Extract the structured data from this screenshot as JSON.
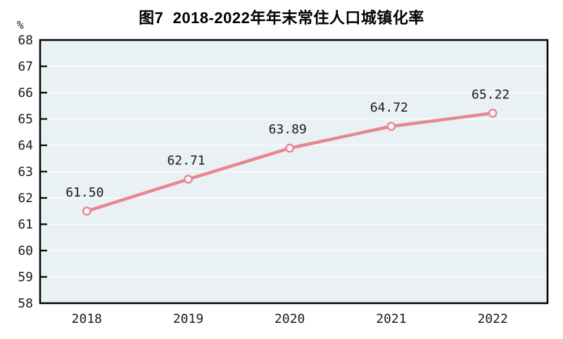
{
  "title": {
    "text": "图7  2018-2022年年末常住人口城镇化率"
  },
  "y_axis": {
    "unit_label": "%",
    "tick_labels": [
      "68",
      "67",
      "66",
      "65",
      "64",
      "63",
      "62",
      "61",
      "60",
      "59",
      "58"
    ]
  },
  "x_axis": {
    "tick_labels": [
      "2018",
      "2019",
      "2020",
      "2021",
      "2022"
    ]
  },
  "chart_data": {
    "type": "line",
    "title": "图7  2018-2022年年末常住人口城镇化率",
    "categories": [
      "2018",
      "2019",
      "2020",
      "2021",
      "2022"
    ],
    "values": [
      61.5,
      62.71,
      63.89,
      64.72,
      65.22
    ],
    "point_labels": [
      "61.50",
      "62.71",
      "63.89",
      "64.72",
      "65.22"
    ],
    "xlabel": "",
    "ylabel": "%",
    "ylim": [
      58,
      68
    ],
    "ytick_step": 1,
    "grid": true,
    "legend_position": "none",
    "colors": {
      "line": "#e8868f",
      "marker_fill": "#fdf6f6",
      "plot_bg": "#e9f1f5",
      "grid": "#fafcfe",
      "axis": "#000000",
      "text": "#1a1a1a"
    }
  }
}
